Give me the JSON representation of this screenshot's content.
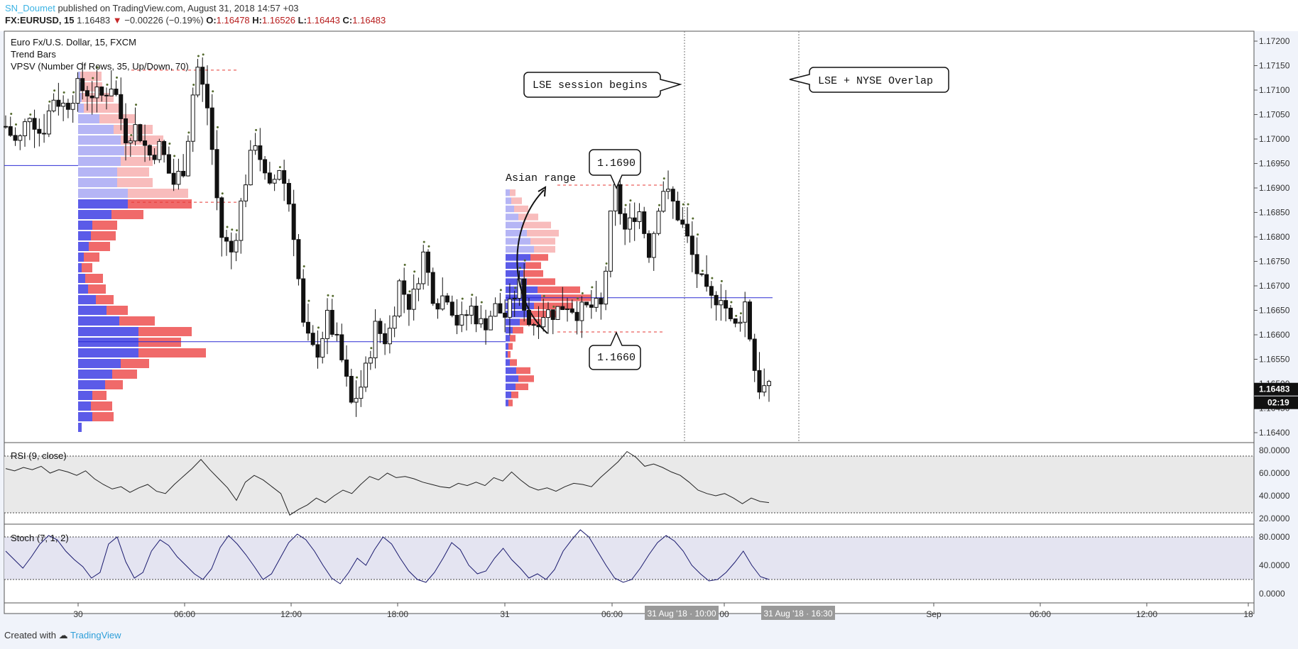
{
  "header": {
    "author": "SN_Doumet",
    "published_text": "published on TradingView.com, August 31, 2018 14:57 +03",
    "symbol": "FX:EURUSD, 15",
    "last": "1.16483",
    "change_arrow": "▼",
    "change": "−0.00226 (−0.19%)",
    "o_label": "O:",
    "o": "1.16478",
    "h_label": "H:",
    "h": "1.16526",
    "l_label": "L:",
    "l": "1.16443",
    "c_label": "C:",
    "c": "1.16483"
  },
  "legend": {
    "instrument": "Euro Fx/U.S. Dollar, 15, FXCM",
    "trend_bars": "Trend Bars",
    "vpsv": "VPSV (Number Of Rows, 35, Up/Down, 70)",
    "rsi": "RSI (9, close)",
    "stoch": "Stoch (7, 1, 2)"
  },
  "annotations": {
    "lse_begins": "LSE session begins",
    "lse_nyse": "LSE + NYSE Overlap",
    "asian_range": "Asian range",
    "high_level": "1.1690",
    "low_level": "1.1660"
  },
  "price_axis": {
    "ticks": [
      "1.17200",
      "1.17150",
      "1.17100",
      "1.17050",
      "1.17000",
      "1.16950",
      "1.16900",
      "1.16850",
      "1.16800",
      "1.16750",
      "1.16700",
      "1.16650",
      "1.16600",
      "1.16550",
      "1.16500",
      "1.16450",
      "1.16400"
    ],
    "last_price": "1.16483",
    "countdown": "02:19"
  },
  "rsi_axis": {
    "ticks": [
      "80.0000",
      "60.0000",
      "40.0000",
      "20.0000"
    ]
  },
  "stoch_axis": {
    "ticks": [
      "80.0000",
      "40.0000",
      "0.0000"
    ]
  },
  "time_axis": {
    "ticks": [
      "30",
      "06:00",
      "12:00",
      "18:00",
      "31",
      "06:00",
      "00",
      "Sep",
      "06:00",
      "12:00",
      "18"
    ],
    "marker1": "31 Aug '18 · 10:00",
    "marker2": "31 Aug '18 · 16:30"
  },
  "footer": {
    "created_with": "Created with",
    "brand": "TradingView"
  },
  "colors": {
    "up_volume": "#5b5be8",
    "down_volume": "#f06a6a",
    "poc_line": "#2b2bd4",
    "rsi_band": "#e9e9e9",
    "stoch_band": "#e4e4f1",
    "stoch_line": "#1a1a6e"
  },
  "chart_data": [
    {
      "type": "candlestick",
      "title": "Euro Fx/U.S. Dollar, 15, FXCM",
      "x": [
        "30",
        "06:00",
        "12:00",
        "18:00",
        "31",
        "06:00",
        "10:00",
        "16:30"
      ],
      "ylim": [
        1.1638,
        1.1722
      ],
      "close_path": [
        1.1702,
        1.1698,
        1.1705,
        1.17,
        1.1708,
        1.1706,
        1.171,
        1.1709,
        1.1708,
        1.1711,
        1.17,
        1.1702,
        1.1696,
        1.1698,
        1.169,
        1.1694,
        1.1715,
        1.1705,
        1.168,
        1.1676,
        1.169,
        1.17,
        1.1688,
        1.1694,
        1.1684,
        1.166,
        1.1655,
        1.1663,
        1.1656,
        1.1645,
        1.165,
        1.1661,
        1.1658,
        1.167,
        1.1665,
        1.1676,
        1.1666,
        1.1668,
        1.1661,
        1.1665,
        1.1661,
        1.1665,
        1.1663,
        1.167,
        1.1661,
        1.1664,
        1.1664,
        1.1666,
        1.1664,
        1.1665,
        1.1665,
        1.169,
        1.168,
        1.1686,
        1.1676,
        1.169,
        1.1686,
        1.168,
        1.1672,
        1.1666,
        1.1668,
        1.166,
        1.1666,
        1.1649,
        1.1648
      ],
      "levels": {
        "high": 1.169,
        "low": 1.166,
        "poc_day1": 1.1658,
        "poc_day2": 1.1667,
        "prior_line": 1.1694
      },
      "last": 1.16483
    },
    {
      "type": "line",
      "name": "RSI (9, close)",
      "ylim": [
        18,
        82
      ],
      "bands": [
        75,
        25
      ],
      "values": [
        64,
        62,
        65,
        63,
        66,
        60,
        63,
        61,
        58,
        62,
        55,
        50,
        46,
        48,
        43,
        47,
        50,
        44,
        42,
        50,
        57,
        64,
        72,
        63,
        55,
        47,
        36,
        52,
        58,
        54,
        48,
        42,
        23,
        28,
        32,
        38,
        34,
        40,
        45,
        42,
        50,
        57,
        54,
        60,
        56,
        57,
        55,
        52,
        50,
        48,
        47,
        51,
        49,
        52,
        49,
        56,
        53,
        61,
        54,
        48,
        45,
        47,
        44,
        48,
        51,
        50,
        48,
        56,
        63,
        70,
        79,
        74,
        66,
        68,
        65,
        61,
        58,
        52,
        45,
        42,
        40,
        42,
        38,
        33,
        38,
        35,
        34
      ]
    },
    {
      "type": "line",
      "name": "Stoch (7, 1, 2)",
      "ylim": [
        0,
        100
      ],
      "bands": [
        80,
        20
      ],
      "values": [
        60,
        48,
        36,
        52,
        70,
        82,
        76,
        60,
        48,
        38,
        22,
        30,
        70,
        80,
        45,
        22,
        30,
        60,
        76,
        68,
        52,
        40,
        28,
        20,
        35,
        65,
        82,
        70,
        55,
        38,
        20,
        28,
        50,
        72,
        84,
        76,
        60,
        40,
        22,
        14,
        30,
        50,
        40,
        62,
        80,
        70,
        50,
        32,
        20,
        16,
        30,
        50,
        72,
        62,
        40,
        28,
        32,
        50,
        64,
        48,
        36,
        22,
        28,
        20,
        34,
        60,
        76,
        90,
        80,
        60,
        40,
        22,
        16,
        20,
        36,
        55,
        72,
        82,
        74,
        60,
        40,
        28,
        18,
        20,
        30,
        44,
        60,
        40,
        24,
        20
      ]
    }
  ]
}
